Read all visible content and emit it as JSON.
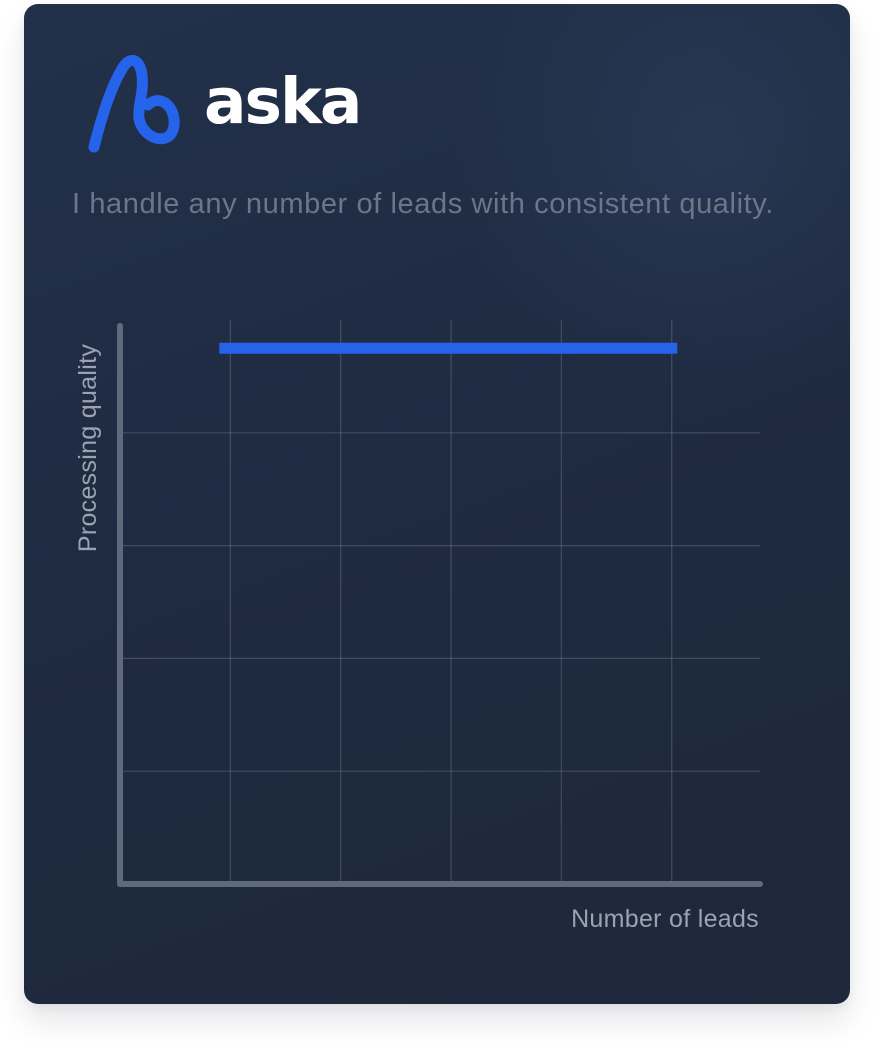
{
  "brand": {
    "name": "aska",
    "logo_icon": "aska-logo-icon",
    "accent_color": "#2563eb"
  },
  "card": {
    "tagline": "I handle any number of leads with consistent quality."
  },
  "chart_data": {
    "type": "line",
    "title": "",
    "xlabel": "Number of leads",
    "ylabel": "Processing quality",
    "xlim": [
      0,
      5.8
    ],
    "ylim": [
      0,
      5
    ],
    "grid": true,
    "x_gridlines": [
      1,
      2,
      3,
      4,
      5
    ],
    "y_gridlines": [
      1,
      2,
      3,
      4
    ],
    "series": [
      {
        "x": [
          0.9,
          5.05
        ],
        "y": [
          4.75,
          4.75
        ],
        "color": "#2563eb"
      }
    ]
  }
}
